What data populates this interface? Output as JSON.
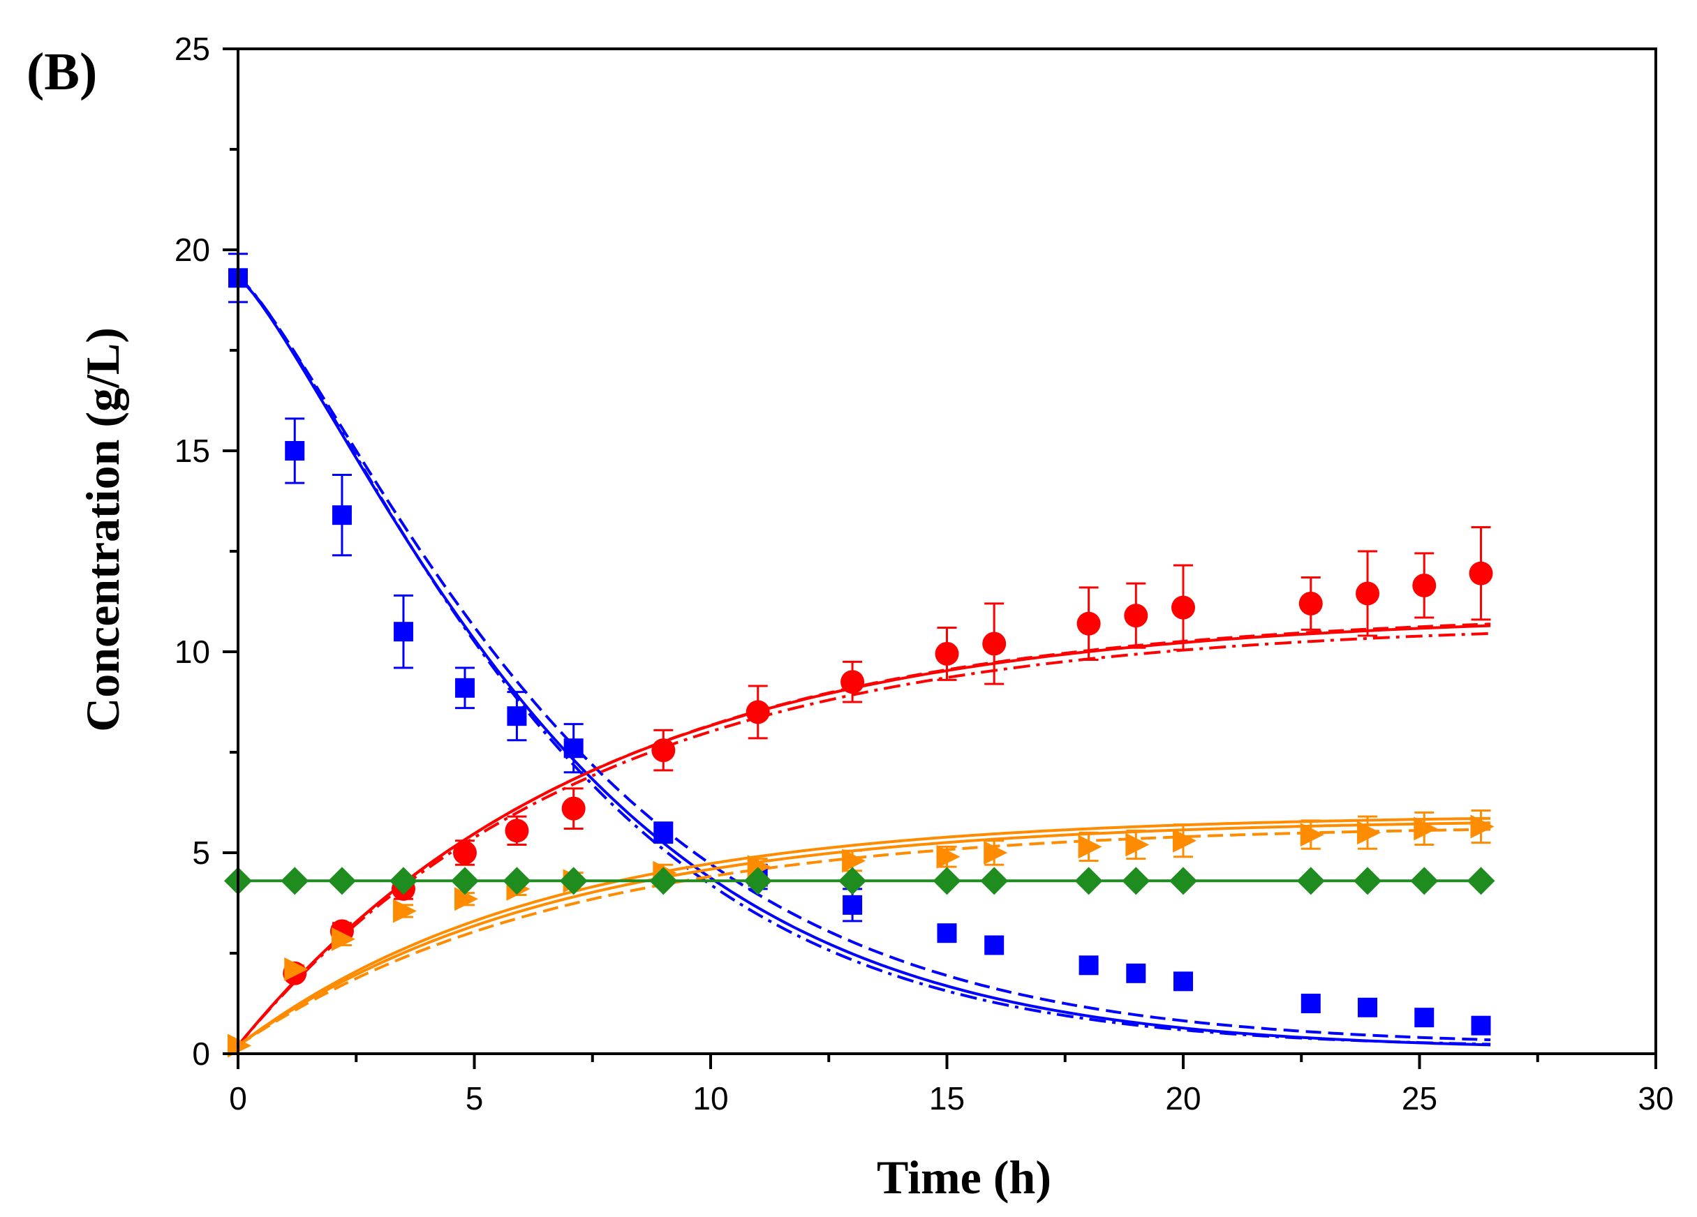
{
  "chart_data": {
    "type": "scatter",
    "panel_label": "(B)",
    "title": "",
    "xlabel": "Time (h)",
    "ylabel": "Concentration (g/L)",
    "xlim": [
      0,
      30
    ],
    "ylim": [
      0,
      25
    ],
    "xticks": [
      0,
      5,
      10,
      15,
      20,
      25,
      30
    ],
    "yticks": [
      0,
      5,
      10,
      15,
      20,
      25
    ],
    "xtick_labels": [
      "0",
      "5",
      "10",
      "15",
      "20",
      "25",
      "30"
    ],
    "ytick_labels": [
      "0",
      "5",
      "10",
      "15",
      "20",
      "25"
    ],
    "grid": false,
    "legend": "none",
    "series": [
      {
        "name": "blue-squares",
        "marker": "square",
        "color": "#0000FF",
        "x": [
          0,
          1.2,
          2.2,
          3.5,
          4.8,
          5.9,
          7.1,
          9.0,
          11.0,
          13.0,
          15.0,
          16.0,
          18.0,
          19.0,
          20.0,
          22.7,
          23.9,
          25.1,
          26.3
        ],
        "y": [
          19.3,
          15.0,
          13.4,
          10.5,
          9.1,
          8.4,
          7.6,
          5.5,
          4.4,
          3.7,
          3.0,
          2.7,
          2.2,
          2.0,
          1.8,
          1.25,
          1.15,
          0.9,
          0.7
        ],
        "err": [
          0.6,
          0.8,
          1.0,
          0.9,
          0.5,
          0.6,
          0.6,
          0.25,
          0.3,
          0.4,
          0,
          0,
          0,
          0,
          0,
          0,
          0,
          0,
          0
        ]
      },
      {
        "name": "red-circles",
        "marker": "circle",
        "color": "#FF0000",
        "x": [
          1.2,
          2.2,
          3.5,
          4.8,
          5.9,
          7.1,
          9.0,
          11.0,
          13.0,
          15.0,
          16.0,
          18.0,
          19.0,
          20.0,
          22.7,
          23.9,
          25.1,
          26.3
        ],
        "y": [
          2.0,
          3.05,
          4.1,
          5.0,
          5.55,
          6.1,
          7.55,
          8.5,
          9.25,
          9.95,
          10.2,
          10.7,
          10.9,
          11.1,
          11.2,
          11.45,
          11.65,
          11.95
        ],
        "err": [
          0.15,
          0.2,
          0.25,
          0.3,
          0.35,
          0.5,
          0.5,
          0.65,
          0.5,
          0.65,
          1.0,
          0.9,
          0.8,
          1.05,
          0.65,
          1.05,
          0.8,
          1.15
        ]
      },
      {
        "name": "orange-triangles",
        "marker": "triangle-right",
        "color": "#FF8C00",
        "x": [
          0,
          1.2,
          2.2,
          3.5,
          4.8,
          5.9,
          7.1,
          9.0,
          11.0,
          13.0,
          15.0,
          16.0,
          18.0,
          19.0,
          20.0,
          22.7,
          23.9,
          25.1,
          26.3
        ],
        "y": [
          0.2,
          2.1,
          2.85,
          3.55,
          3.85,
          4.1,
          4.3,
          4.5,
          4.65,
          4.8,
          4.9,
          5.0,
          5.15,
          5.2,
          5.3,
          5.45,
          5.5,
          5.6,
          5.65
        ],
        "err": [
          0,
          0.1,
          0.15,
          0.15,
          0.15,
          0.15,
          0.2,
          0.2,
          0.2,
          0.25,
          0.25,
          0.3,
          0.35,
          0.35,
          0.4,
          0.35,
          0.4,
          0.4,
          0.4
        ]
      },
      {
        "name": "green-diamonds",
        "marker": "diamond",
        "color": "#1E8C1E",
        "x": [
          0,
          1.2,
          2.2,
          3.5,
          4.8,
          5.9,
          7.1,
          9.0,
          11.0,
          13.0,
          15.0,
          16.0,
          18.0,
          19.0,
          20.0,
          22.7,
          23.9,
          25.1,
          26.3
        ],
        "y": [
          4.3,
          4.3,
          4.3,
          4.3,
          4.3,
          4.3,
          4.3,
          4.3,
          4.3,
          4.3,
          4.3,
          4.3,
          4.3,
          4.3,
          4.3,
          4.3,
          4.3,
          4.3,
          4.3
        ],
        "err": [
          0,
          0,
          0,
          0,
          0,
          0,
          0,
          0,
          0,
          0,
          0,
          0,
          0,
          0,
          0,
          0,
          0,
          0,
          0
        ]
      }
    ],
    "fit_curves": [
      {
        "name": "blue-fit-solid",
        "color": "#0000FF",
        "style": "solid",
        "model": "decay",
        "start": 19.3,
        "end": 0.1,
        "k": 0.1385,
        "order": 1.25
      },
      {
        "name": "blue-fit-dashed",
        "color": "#0000FF",
        "style": "dashed",
        "model": "decay",
        "start": 19.3,
        "end": 0.2,
        "k": 0.134,
        "order": 1.25
      },
      {
        "name": "blue-fit-dashdot",
        "color": "#0000FF",
        "style": "dashdot",
        "model": "decay",
        "start": 19.3,
        "end": 0.15,
        "k": 0.141,
        "order": 1.28
      },
      {
        "name": "red-fit-solid",
        "color": "#FF0000",
        "style": "solid",
        "model": "rise",
        "start": 0.2,
        "end": 10.95,
        "k": 0.135
      },
      {
        "name": "red-fit-dashed",
        "color": "#FF0000",
        "style": "dashed",
        "model": "rise",
        "start": 0.2,
        "end": 11.0,
        "k": 0.134
      },
      {
        "name": "red-fit-dashdot",
        "color": "#FF0000",
        "style": "dashdot",
        "model": "rise",
        "start": 0.2,
        "end": 10.75,
        "k": 0.135
      },
      {
        "name": "orange-fit-solid",
        "color": "#FF8C00",
        "style": "solid",
        "model": "rise",
        "start": 0.2,
        "end": 5.95,
        "k": 0.155
      },
      {
        "name": "orange-fit-solid-2",
        "color": "#FF8C00",
        "style": "solid",
        "model": "rise",
        "start": 0.2,
        "end": 5.85,
        "k": 0.15
      },
      {
        "name": "orange-fit-dashed",
        "color": "#FF8C00",
        "style": "dashed",
        "model": "rise",
        "start": 0.2,
        "end": 5.7,
        "k": 0.145
      },
      {
        "name": "green-fit-solid",
        "color": "#1E8C1E",
        "style": "solid",
        "model": "constant",
        "value": 4.3
      }
    ],
    "fit_xrange": [
      0,
      26.5
    ]
  }
}
